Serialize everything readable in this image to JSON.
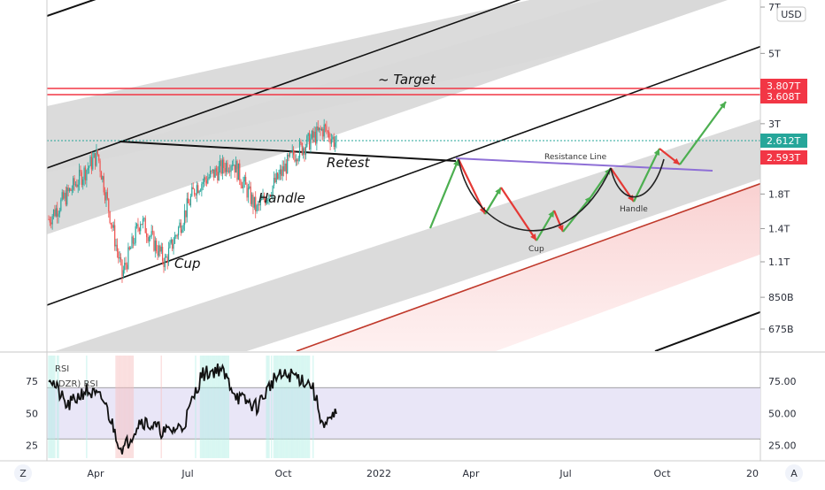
{
  "chart_data": [
    {
      "type": "candlestick",
      "currency_badge": "USD",
      "y_axis": {
        "scale": "log",
        "tick_labels": [
          "7T",
          "5T",
          "3T",
          "1.8T",
          "1.4T",
          "1.1T",
          "850B",
          "675B"
        ],
        "tick_values": [
          7000,
          5000,
          3000,
          1800,
          1400,
          1100,
          850,
          675
        ],
        "unit": "billion USD"
      },
      "x_axis": {
        "tick_labels": [
          "Apr",
          "Jul",
          "Oct",
          "2022",
          "Apr",
          "Jul",
          "Oct",
          "20"
        ]
      },
      "price_labels": [
        {
          "text": "3.807T",
          "value": 3807,
          "color": "#f23645"
        },
        {
          "text": "3.608T",
          "value": 3608,
          "color": "#f23645"
        },
        {
          "text": "2.612T",
          "value": 2612,
          "color": "#26a69a"
        },
        {
          "text": "2.593T",
          "value": 2593,
          "color": "#f23645"
        }
      ],
      "annotations": [
        "~ Target",
        "Retest",
        "Handle",
        "Cup",
        "Resistance Line",
        "Cup",
        "Handle"
      ],
      "grid": false,
      "price_series_shape": {
        "description_points_billion": [
          [
            0,
            1500
          ],
          [
            20,
            1900
          ],
          [
            40,
            2400
          ],
          [
            60,
            1000
          ],
          [
            75,
            1500
          ],
          [
            95,
            1100
          ],
          [
            120,
            1900
          ],
          [
            150,
            2300
          ],
          [
            170,
            1600
          ],
          [
            200,
            2400
          ],
          [
            225,
            2900
          ],
          [
            235,
            2600
          ]
        ]
      }
    },
    {
      "type": "line",
      "indicator_labels": [
        "RSI",
        "(DZR) RSI"
      ],
      "y_axis": {
        "range": [
          15,
          95
        ],
        "tick_labels_left": [
          "75",
          "50",
          "25"
        ],
        "tick_labels_right": [
          "75.00",
          "50.00",
          "25.00"
        ]
      },
      "bands": {
        "upper": 70,
        "lower": 30
      },
      "rsi_shape_points": [
        [
          0,
          80
        ],
        [
          15,
          55
        ],
        [
          30,
          68
        ],
        [
          45,
          60
        ],
        [
          60,
          20
        ],
        [
          75,
          45
        ],
        [
          95,
          35
        ],
        [
          110,
          40
        ],
        [
          125,
          80
        ],
        [
          140,
          85
        ],
        [
          155,
          62
        ],
        [
          170,
          55
        ],
        [
          185,
          78
        ],
        [
          200,
          80
        ],
        [
          215,
          72
        ],
        [
          225,
          38
        ],
        [
          235,
          50
        ]
      ]
    }
  ],
  "toolbar": {
    "left_button": "Z",
    "right_button": "A"
  }
}
